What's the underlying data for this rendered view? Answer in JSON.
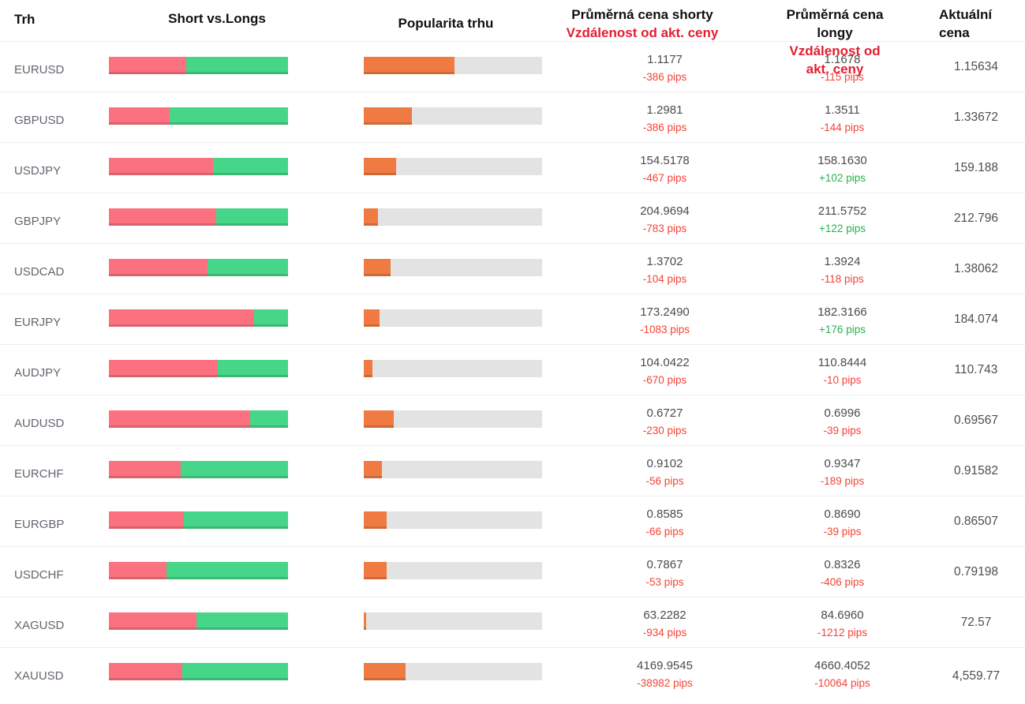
{
  "table_title": "Forex sentiment table",
  "columns": {
    "market": "Trh",
    "short_vs_longs": "Short vs.Longs",
    "popularity": "Popularita trhu",
    "avg_short_line1": "Průměrná cena shorty",
    "avg_short_line2": "Vzdálenost od akt. ceny",
    "avg_long_line1": "Průměrná cena longy",
    "avg_long_line2": "Vzdálenost od akt. ceny",
    "current_price": "Aktuální cena"
  },
  "colors": {
    "short_red": "#fc7180",
    "long_green": "#46d689",
    "popularity_orange": "#f07b42",
    "track_gray": "#e3e3e3",
    "header_red": "#e51c30",
    "negative_pips": "#f44336",
    "positive_pips": "#26b24e"
  },
  "rows": [
    {
      "market": "EURUSD",
      "short_pct": 43,
      "long_pct": 57,
      "popularity_pct": 51,
      "avg_short_price": "1.1177",
      "avg_short_distance": "-386 pips",
      "avg_long_price": "1.1678",
      "avg_long_distance": "-115 pips",
      "current_price": "1.15634"
    },
    {
      "market": "GBPUSD",
      "short_pct": 34,
      "long_pct": 66,
      "popularity_pct": 27,
      "avg_short_price": "1.2981",
      "avg_short_distance": "-386 pips",
      "avg_long_price": "1.3511",
      "avg_long_distance": "-144 pips",
      "current_price": "1.33672"
    },
    {
      "market": "USDJPY",
      "short_pct": 58,
      "long_pct": 42,
      "popularity_pct": 18,
      "avg_short_price": "154.5178",
      "avg_short_distance": "-467 pips",
      "avg_long_price": "158.1630",
      "avg_long_distance": "+102 pips",
      "current_price": "159.188"
    },
    {
      "market": "GBPJPY",
      "short_pct": 60,
      "long_pct": 40,
      "popularity_pct": 8,
      "avg_short_price": "204.9694",
      "avg_short_distance": "-783 pips",
      "avg_long_price": "211.5752",
      "avg_long_distance": "+122 pips",
      "current_price": "212.796"
    },
    {
      "market": "USDCAD",
      "short_pct": 55,
      "long_pct": 45,
      "popularity_pct": 15,
      "avg_short_price": "1.3702",
      "avg_short_distance": "-104 pips",
      "avg_long_price": "1.3924",
      "avg_long_distance": "-118 pips",
      "current_price": "1.38062"
    },
    {
      "market": "EURJPY",
      "short_pct": 81,
      "long_pct": 19,
      "popularity_pct": 9,
      "avg_short_price": "173.2490",
      "avg_short_distance": "-1083 pips",
      "avg_long_price": "182.3166",
      "avg_long_distance": "+176 pips",
      "current_price": "184.074"
    },
    {
      "market": "AUDJPY",
      "short_pct": 61,
      "long_pct": 39,
      "popularity_pct": 5,
      "avg_short_price": "104.0422",
      "avg_short_distance": "-670 pips",
      "avg_long_price": "110.8444",
      "avg_long_distance": "-10 pips",
      "current_price": "110.743"
    },
    {
      "market": "AUDUSD",
      "short_pct": 79,
      "long_pct": 21,
      "popularity_pct": 17,
      "avg_short_price": "0.6727",
      "avg_short_distance": "-230 pips",
      "avg_long_price": "0.6996",
      "avg_long_distance": "-39 pips",
      "current_price": "0.69567"
    },
    {
      "market": "EURCHF",
      "short_pct": 40,
      "long_pct": 60,
      "popularity_pct": 10,
      "avg_short_price": "0.9102",
      "avg_short_distance": "-56 pips",
      "avg_long_price": "0.9347",
      "avg_long_distance": "-189 pips",
      "current_price": "0.91582"
    },
    {
      "market": "EURGBP",
      "short_pct": 42,
      "long_pct": 58,
      "popularity_pct": 13,
      "avg_short_price": "0.8585",
      "avg_short_distance": "-66 pips",
      "avg_long_price": "0.8690",
      "avg_long_distance": "-39 pips",
      "current_price": "0.86507"
    },
    {
      "market": "USDCHF",
      "short_pct": 32,
      "long_pct": 68,
      "popularity_pct": 13,
      "avg_short_price": "0.7867",
      "avg_short_distance": "-53 pips",
      "avg_long_price": "0.8326",
      "avg_long_distance": "-406 pips",
      "current_price": "0.79198"
    },
    {
      "market": "XAGUSD",
      "short_pct": 49,
      "long_pct": 51,
      "popularity_pct": 1.5,
      "avg_short_price": "63.2282",
      "avg_short_distance": "-934 pips",
      "avg_long_price": "84.6960",
      "avg_long_distance": "-1212 pips",
      "current_price": "72.57"
    },
    {
      "market": "XAUUSD",
      "short_pct": 41,
      "long_pct": 59,
      "popularity_pct": 23.5,
      "avg_short_price": "4169.9545",
      "avg_short_distance": "-38982 pips",
      "avg_long_price": "4660.4052",
      "avg_long_distance": "-10064 pips",
      "current_price": "4,559.77"
    }
  ]
}
